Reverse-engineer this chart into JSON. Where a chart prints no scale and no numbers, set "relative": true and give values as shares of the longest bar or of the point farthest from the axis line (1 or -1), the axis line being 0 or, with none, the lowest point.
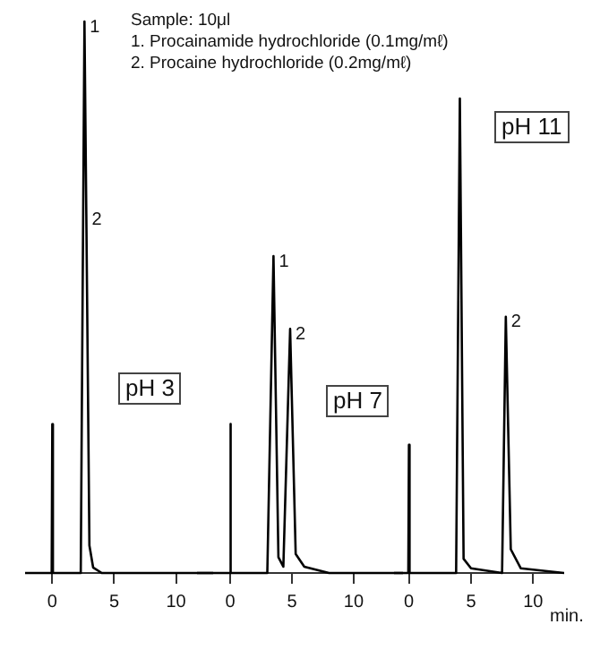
{
  "chart_data": [
    {
      "type": "line",
      "relative": true,
      "x": [
        -2.2,
        -0.05,
        0,
        0.05,
        2.3,
        2.6,
        2.75,
        3.0,
        3.3,
        4,
        13
      ],
      "series": [
        {
          "color": "#000000",
          "values": [
            0,
            0,
            0.27,
            0,
            0,
            1,
            0.65,
            0.05,
            0.01,
            0,
            0
          ]
        }
      ],
      "xlim": [
        -2.2,
        13
      ],
      "xticks": [
        0,
        5,
        10
      ],
      "tick_labels": "x",
      "grid": false,
      "legend": false,
      "marker": "none",
      "line_style": "solid",
      "annotations": [
        "Sample: 10μl",
        "1. Procainamide hydrochloride (0.1mg/mℓ)",
        "2. Procaine hydrochloride (0.2mg/mℓ)",
        "pH 3",
        {
          "text": "1",
          "x": 2.6,
          "y": 1
        },
        {
          "text": "2",
          "x": 2.75,
          "y": 0.65
        }
      ]
    },
    {
      "type": "line",
      "relative": true,
      "x": [
        -2.7,
        -0.05,
        0,
        0.05,
        3.0,
        3.5,
        3.9,
        4.3,
        4.85,
        5.3,
        6,
        8,
        14
      ],
      "series": [
        {
          "color": "#000000",
          "values": [
            0,
            0,
            0.47,
            0,
            0,
            1,
            0.05,
            0.02,
            0.77,
            0.06,
            0.02,
            0,
            0
          ]
        }
      ],
      "xlim": [
        -2.7,
        14
      ],
      "xticks": [
        0,
        5,
        10
      ],
      "tick_labels": "x",
      "grid": false,
      "legend": false,
      "marker": "none",
      "line_style": "solid",
      "annotations": [
        "pH 7",
        {
          "text": "1",
          "x": 3.5,
          "y": 1
        },
        {
          "text": "2",
          "x": 4.85,
          "y": 0.77
        }
      ]
    },
    {
      "type": "line",
      "relative": true,
      "x": [
        -1.2,
        -0.05,
        0,
        0.05,
        3.8,
        4.1,
        4.4,
        5,
        7.5,
        7.8,
        8.2,
        9,
        12.5
      ],
      "series": [
        {
          "color": "#000000",
          "values": [
            0,
            0,
            0.27,
            0,
            0,
            1,
            0.03,
            0.01,
            0,
            0.54,
            0.05,
            0.01,
            0
          ]
        }
      ],
      "xlim": [
        -1.2,
        12.5
      ],
      "xticks": [
        0,
        5,
        10
      ],
      "xlabel": "min.",
      "tick_labels": "x",
      "grid": false,
      "legend": false,
      "marker": "none",
      "line_style": "solid",
      "annotations": [
        "pH 11",
        {
          "text": "2",
          "x": 7.8,
          "y": 0.54
        }
      ]
    }
  ]
}
